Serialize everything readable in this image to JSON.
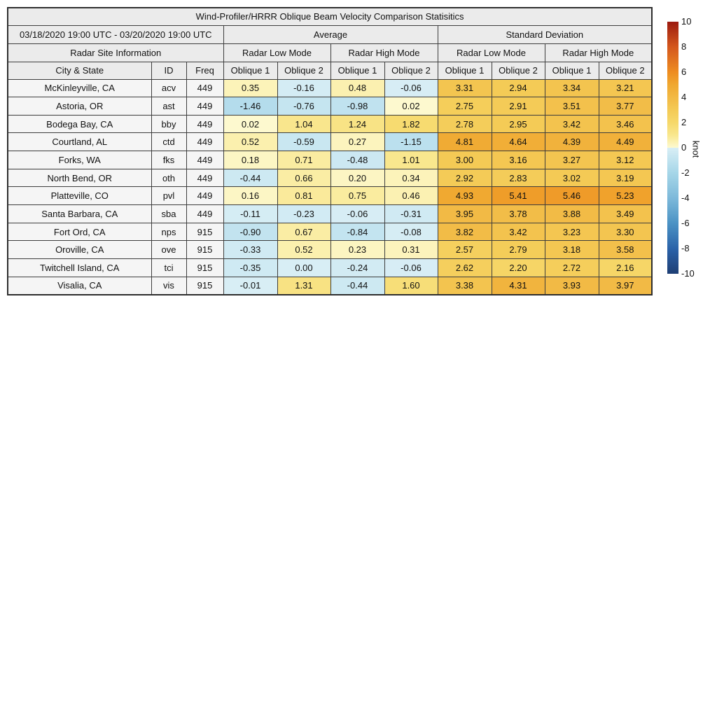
{
  "chart_data": {
    "type": "table",
    "title": "Wind-Profiler/HRRR Oblique Beam Velocity Comparison Statisitics",
    "header": {
      "date_range": "03/18/2020 19:00 UTC - 03/20/2020 19:00 UTC",
      "group_average": "Average",
      "group_std_dev": "Standard Deviation",
      "site_info": "Radar Site Information",
      "mode_low": "Radar Low Mode",
      "mode_high": "Radar High Mode",
      "col_city": "City & State",
      "col_id": "ID",
      "col_freq": "Freq",
      "col_ob1": "Oblique 1",
      "col_ob2": "Oblique 2"
    },
    "rows": [
      {
        "city": "McKinleyville, CA",
        "id": "acv",
        "freq": "449",
        "values": [
          "0.35",
          "-0.16",
          "0.48",
          "-0.06",
          "3.31",
          "2.94",
          "3.34",
          "3.21"
        ]
      },
      {
        "city": "Astoria, OR",
        "id": "ast",
        "freq": "449",
        "values": [
          "-1.46",
          "-0.76",
          "-0.98",
          "0.02",
          "2.75",
          "2.91",
          "3.51",
          "3.77"
        ]
      },
      {
        "city": "Bodega Bay, CA",
        "id": "bby",
        "freq": "449",
        "values": [
          "0.02",
          "1.04",
          "1.24",
          "1.82",
          "2.78",
          "2.95",
          "3.42",
          "3.46"
        ]
      },
      {
        "city": "Courtland, AL",
        "id": "ctd",
        "freq": "449",
        "values": [
          "0.52",
          "-0.59",
          "0.27",
          "-1.15",
          "4.81",
          "4.64",
          "4.39",
          "4.49"
        ]
      },
      {
        "city": "Forks, WA",
        "id": "fks",
        "freq": "449",
        "values": [
          "0.18",
          "0.71",
          "-0.48",
          "1.01",
          "3.00",
          "3.16",
          "3.27",
          "3.12"
        ]
      },
      {
        "city": "North Bend, OR",
        "id": "oth",
        "freq": "449",
        "values": [
          "-0.44",
          "0.66",
          "0.20",
          "0.34",
          "2.92",
          "2.83",
          "3.02",
          "3.19"
        ]
      },
      {
        "city": "Platteville, CO",
        "id": "pvl",
        "freq": "449",
        "values": [
          "0.16",
          "0.81",
          "0.75",
          "0.46",
          "4.93",
          "5.41",
          "5.46",
          "5.23"
        ]
      },
      {
        "city": "Santa Barbara, CA",
        "id": "sba",
        "freq": "449",
        "values": [
          "-0.11",
          "-0.23",
          "-0.06",
          "-0.31",
          "3.95",
          "3.78",
          "3.88",
          "3.49"
        ]
      },
      {
        "city": "Fort Ord, CA",
        "id": "nps",
        "freq": "915",
        "values": [
          "-0.90",
          "0.67",
          "-0.84",
          "-0.08",
          "3.82",
          "3.42",
          "3.23",
          "3.30"
        ]
      },
      {
        "city": "Oroville, CA",
        "id": "ove",
        "freq": "915",
        "values": [
          "-0.33",
          "0.52",
          "0.23",
          "0.31",
          "2.57",
          "2.79",
          "3.18",
          "3.58"
        ]
      },
      {
        "city": "Twitchell Island, CA",
        "id": "tci",
        "freq": "915",
        "values": [
          "-0.35",
          "0.00",
          "-0.24",
          "-0.06",
          "2.62",
          "2.20",
          "2.72",
          "2.16"
        ]
      },
      {
        "city": "Visalia, CA",
        "id": "vis",
        "freq": "915",
        "values": [
          "-0.01",
          "1.31",
          "-0.44",
          "1.60",
          "3.38",
          "4.31",
          "3.93",
          "3.97"
        ]
      }
    ],
    "colorbar": {
      "label": "knot",
      "ticks": [
        10,
        8,
        6,
        4,
        2,
        0,
        -2,
        -4,
        -6,
        -8,
        -10
      ],
      "vmin": -10,
      "vmax": 10,
      "warm_stops": [
        [
          0,
          "#fdf9d0"
        ],
        [
          1,
          "#f9e78e"
        ],
        [
          2,
          "#f6d86a"
        ],
        [
          3,
          "#f4ca55"
        ],
        [
          4,
          "#f2b944"
        ],
        [
          5,
          "#f0a830"
        ],
        [
          6,
          "#ee8c20"
        ],
        [
          8,
          "#d4571d"
        ],
        [
          10,
          "#9c1a0f"
        ]
      ],
      "cool_stops": [
        [
          0,
          "#d8eef5"
        ],
        [
          2,
          "#a6d6e8"
        ],
        [
          4,
          "#7db9da"
        ],
        [
          6,
          "#4b92c4"
        ],
        [
          8,
          "#2b63a9"
        ],
        [
          10,
          "#1e3e74"
        ]
      ]
    },
    "layout": {
      "header_bg": "#ebebeb",
      "site_bg": "#f5f5f5",
      "border_color": "#3d3d3d"
    }
  }
}
